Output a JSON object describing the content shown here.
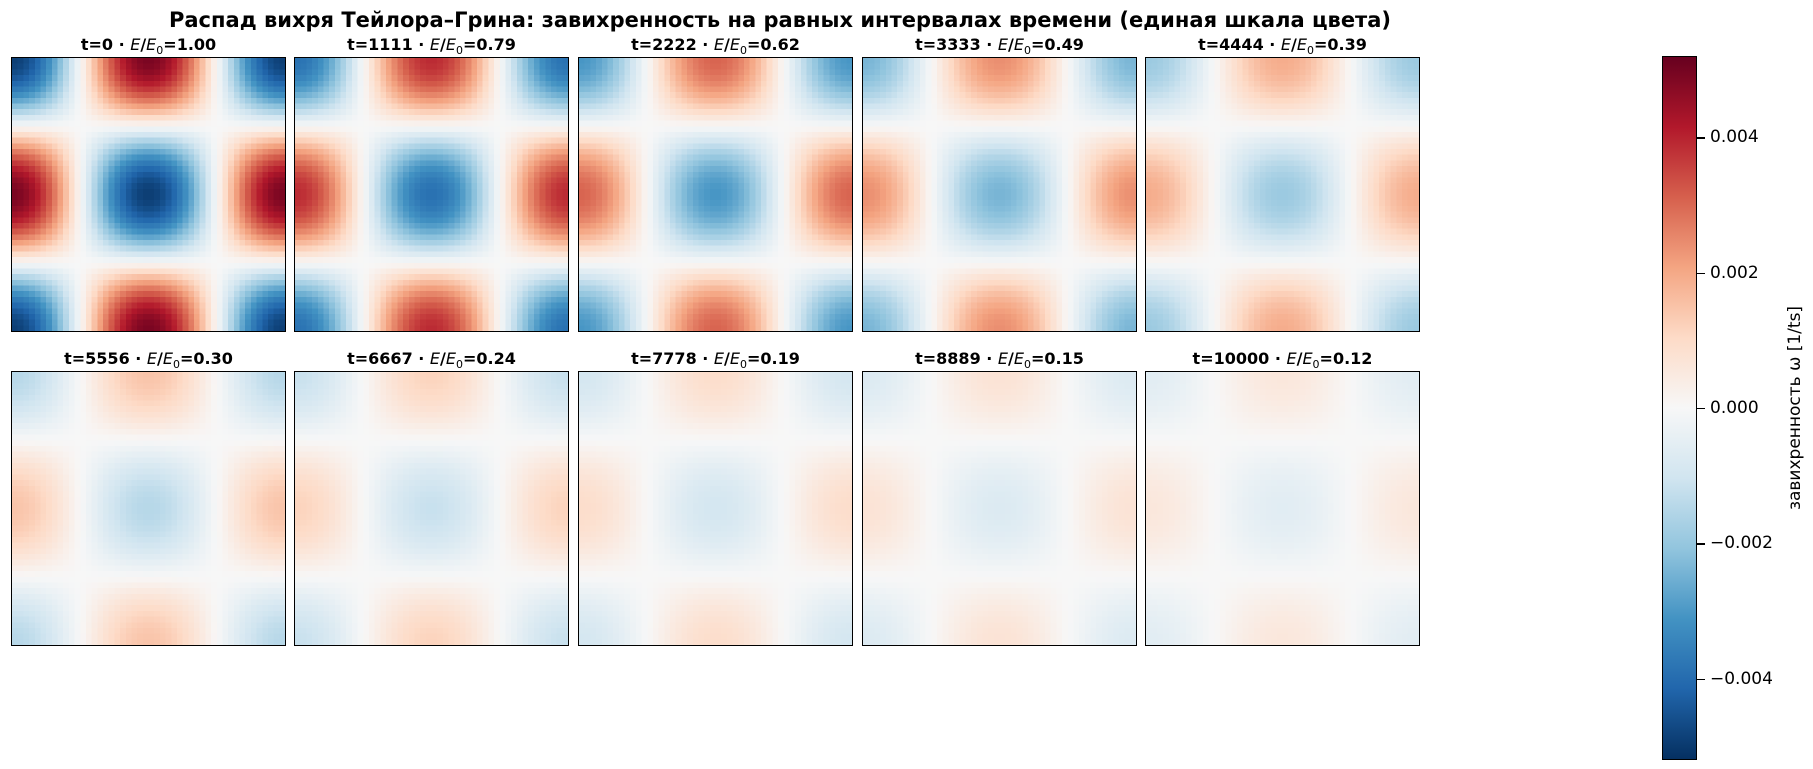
{
  "title": "Распад вихря Тейлора–Грина: завихренность на равных интервалах времени (единая шкала цвета)",
  "chart_data": {
    "type": "heatmap",
    "colormap": "RdBu_r",
    "field": "vorticity, Taylor–Green vortex",
    "vmin": -0.0052,
    "vmax": 0.0052,
    "panels": [
      {
        "t": "t=0",
        "ratio": "1.00",
        "amplitude": 1.0
      },
      {
        "t": "t=1111",
        "ratio": "0.79",
        "amplitude": 0.79
      },
      {
        "t": "t=2222",
        "ratio": "0.62",
        "amplitude": 0.62
      },
      {
        "t": "t=3333",
        "ratio": "0.49",
        "amplitude": 0.49
      },
      {
        "t": "t=4444",
        "ratio": "0.39",
        "amplitude": 0.39
      },
      {
        "t": "t=5556",
        "ratio": "0.30",
        "amplitude": 0.3
      },
      {
        "t": "t=6667",
        "ratio": "0.24",
        "amplitude": 0.24
      },
      {
        "t": "t=7778",
        "ratio": "0.19",
        "amplitude": 0.19
      },
      {
        "t": "t=8889",
        "ratio": "0.15",
        "amplitude": 0.15
      },
      {
        "t": "t=10000",
        "ratio": "0.12",
        "amplitude": 0.12
      }
    ],
    "colorbar": {
      "label": "завихренность ω [1/ts]",
      "ticks": [
        {
          "value": 0.004,
          "label": "0.004"
        },
        {
          "value": 0.002,
          "label": "0.002"
        },
        {
          "value": 0.0,
          "label": "0.000"
        },
        {
          "value": -0.002,
          "label": "−0.002"
        },
        {
          "value": -0.004,
          "label": "−0.004"
        }
      ]
    }
  }
}
